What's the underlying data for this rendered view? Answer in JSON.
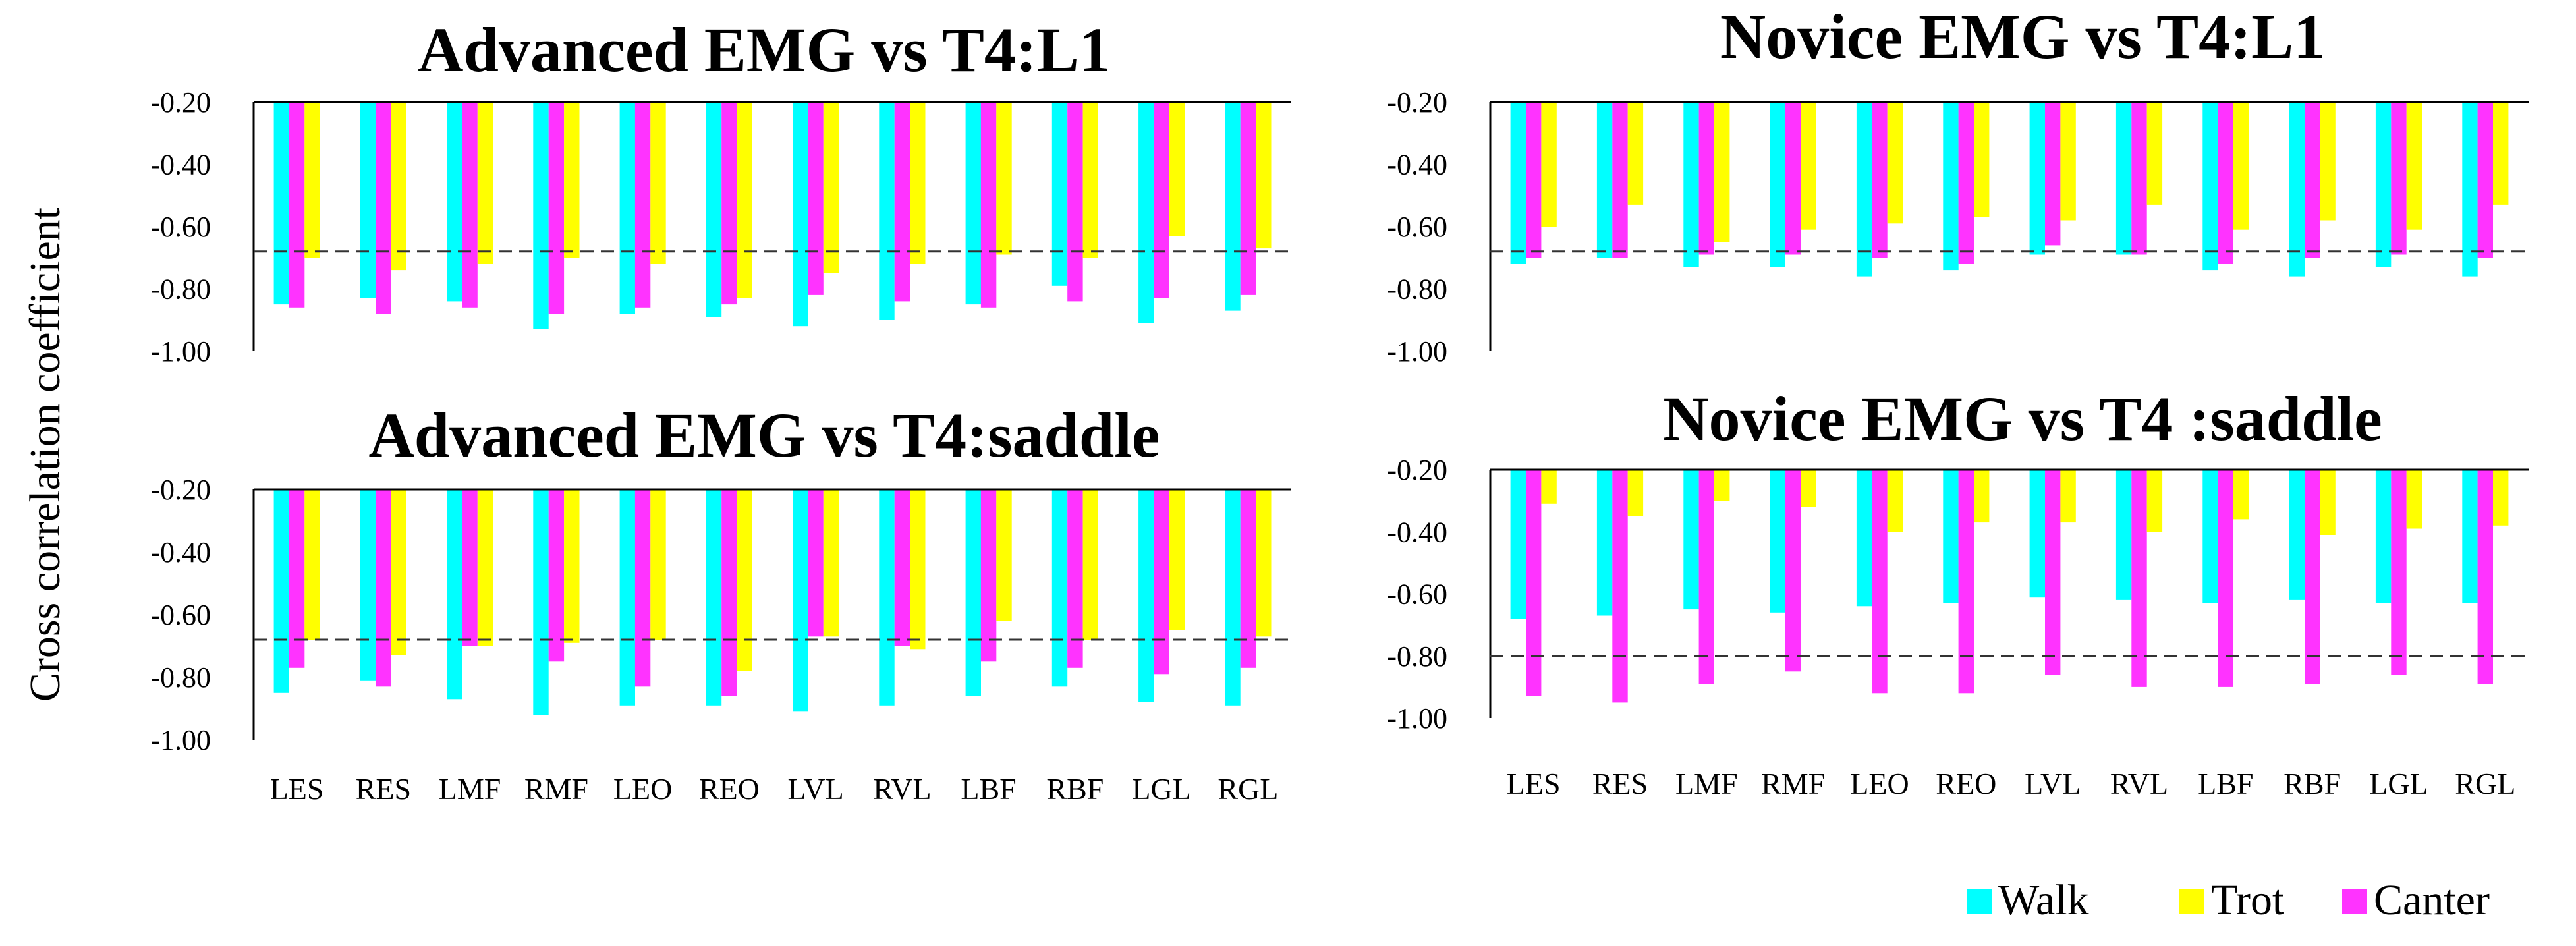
{
  "ylabel": "Cross correlation coefficient",
  "legend": {
    "position": "bottom-right",
    "items": [
      {
        "name": "Walk",
        "color": "#00FFFF"
      },
      {
        "name": "Trot",
        "color": "#FFFF00"
      },
      {
        "name": "Canter",
        "color": "#FF33FF"
      }
    ]
  },
  "chart_data": [
    {
      "type": "bar",
      "title": "Advanced EMG vs T4:L1",
      "categories": [
        "LES",
        "RES",
        "LMF",
        "RMF",
        "LEO",
        "REO",
        "LVL",
        "RVL",
        "LBF",
        "RBF",
        "LGL",
        "RGL"
      ],
      "show_category_labels": false,
      "ylim": [
        -1.0,
        -0.2
      ],
      "yticks": [
        "-0.20",
        "-0.40",
        "-0.60",
        "-0.80",
        "-1.00"
      ],
      "threshold": -0.68,
      "series": [
        {
          "name": "Walk",
          "values": [
            -0.85,
            -0.83,
            -0.84,
            -0.93,
            -0.88,
            -0.89,
            -0.92,
            -0.9,
            -0.85,
            -0.79,
            -0.91,
            -0.87
          ]
        },
        {
          "name": "Canter",
          "values": [
            -0.86,
            -0.88,
            -0.86,
            -0.88,
            -0.86,
            -0.85,
            -0.82,
            -0.84,
            -0.86,
            -0.84,
            -0.83,
            -0.82
          ]
        },
        {
          "name": "Trot",
          "values": [
            -0.7,
            -0.74,
            -0.72,
            -0.7,
            -0.72,
            -0.83,
            -0.75,
            -0.72,
            -0.69,
            -0.7,
            -0.63,
            -0.67
          ]
        }
      ]
    },
    {
      "type": "bar",
      "title": "Novice EMG vs T4:L1",
      "categories": [
        "LES",
        "RES",
        "LMF",
        "RMF",
        "LEO",
        "REO",
        "LVL",
        "RVL",
        "LBF",
        "RBF",
        "LGL",
        "RGL"
      ],
      "show_category_labels": false,
      "ylim": [
        -1.0,
        -0.2
      ],
      "yticks": [
        "-0.20",
        "-0.40",
        "-0.60",
        "-0.80",
        "-1.00"
      ],
      "threshold": -0.68,
      "series": [
        {
          "name": "Walk",
          "values": [
            -0.72,
            -0.7,
            -0.73,
            -0.73,
            -0.76,
            -0.74,
            -0.69,
            -0.69,
            -0.74,
            -0.76,
            -0.73,
            -0.76
          ]
        },
        {
          "name": "Canter",
          "values": [
            -0.7,
            -0.7,
            -0.69,
            -0.69,
            -0.7,
            -0.72,
            -0.66,
            -0.69,
            -0.72,
            -0.7,
            -0.69,
            -0.7
          ]
        },
        {
          "name": "Trot",
          "values": [
            -0.6,
            -0.53,
            -0.65,
            -0.61,
            -0.59,
            -0.57,
            -0.58,
            -0.53,
            -0.61,
            -0.58,
            -0.61,
            -0.53
          ]
        }
      ]
    },
    {
      "type": "bar",
      "title": "Advanced EMG vs T4:saddle",
      "categories": [
        "LES",
        "RES",
        "LMF",
        "RMF",
        "LEO",
        "REO",
        "LVL",
        "RVL",
        "LBF",
        "RBF",
        "LGL",
        "RGL"
      ],
      "show_category_labels": true,
      "ylim": [
        -1.0,
        -0.2
      ],
      "yticks": [
        "-0.20",
        "-0.40",
        "-0.60",
        "-0.80",
        "-1.00"
      ],
      "threshold": -0.68,
      "series": [
        {
          "name": "Walk",
          "values": [
            -0.85,
            -0.81,
            -0.87,
            -0.92,
            -0.89,
            -0.89,
            -0.91,
            -0.89,
            -0.86,
            -0.83,
            -0.88,
            -0.89
          ]
        },
        {
          "name": "Canter",
          "values": [
            -0.77,
            -0.83,
            -0.7,
            -0.75,
            -0.83,
            -0.86,
            -0.67,
            -0.7,
            -0.75,
            -0.77,
            -0.79,
            -0.77
          ]
        },
        {
          "name": "Trot",
          "values": [
            -0.68,
            -0.73,
            -0.7,
            -0.69,
            -0.68,
            -0.78,
            -0.67,
            -0.71,
            -0.62,
            -0.68,
            -0.65,
            -0.67
          ]
        }
      ]
    },
    {
      "type": "bar",
      "title": "Novice EMG vs T4 :saddle",
      "categories": [
        "LES",
        "RES",
        "LMF",
        "RMF",
        "LEO",
        "REO",
        "LVL",
        "RVL",
        "LBF",
        "RBF",
        "LGL",
        "RGL"
      ],
      "show_category_labels": true,
      "ylim": [
        -1.0,
        -0.2
      ],
      "yticks": [
        "-0.20",
        "-0.40",
        "-0.60",
        "-0.80",
        "-1.00"
      ],
      "threshold": -0.8,
      "series": [
        {
          "name": "Walk",
          "values": [
            -0.68,
            -0.67,
            -0.65,
            -0.66,
            -0.64,
            -0.63,
            -0.61,
            -0.62,
            -0.63,
            -0.62,
            -0.63,
            -0.63
          ]
        },
        {
          "name": "Canter",
          "values": [
            -0.93,
            -0.95,
            -0.89,
            -0.85,
            -0.92,
            -0.92,
            -0.86,
            -0.9,
            -0.9,
            -0.89,
            -0.86,
            -0.89
          ]
        },
        {
          "name": "Trot",
          "values": [
            -0.31,
            -0.35,
            -0.3,
            -0.32,
            -0.4,
            -0.37,
            -0.37,
            -0.4,
            -0.36,
            -0.41,
            -0.39,
            -0.38
          ]
        }
      ]
    }
  ]
}
